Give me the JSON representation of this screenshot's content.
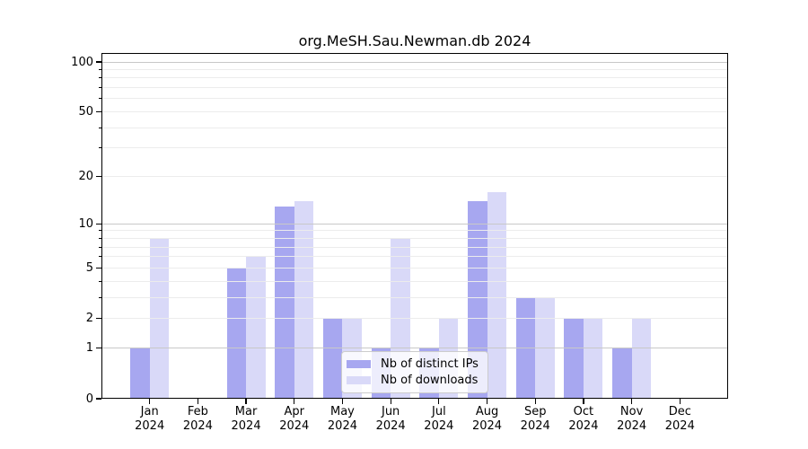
{
  "chart_data": {
    "type": "bar",
    "title": "org.MeSH.Sau.Newman.db 2024",
    "categories": [
      "Jan",
      "Feb",
      "Mar",
      "Apr",
      "May",
      "Jun",
      "Jul",
      "Aug",
      "Sep",
      "Oct",
      "Nov",
      "Dec"
    ],
    "year_label": "2024",
    "series": [
      {
        "name": "Nb of distinct IPs",
        "color": "#a7a7f0",
        "values": [
          1,
          0,
          5,
          13,
          2,
          1,
          1,
          14,
          3,
          2,
          1,
          0
        ]
      },
      {
        "name": "Nb of downloads",
        "color": "#d9d9f8",
        "values": [
          8,
          0,
          6,
          14,
          2,
          8,
          2,
          16,
          3,
          2,
          2,
          0
        ]
      }
    ],
    "yscale": "log1p",
    "ylim": [
      0,
      110
    ],
    "yticks_labeled": [
      0,
      1,
      2,
      5,
      10,
      20,
      50,
      100
    ],
    "grid": "on",
    "grid_major_values": [
      1,
      10,
      100
    ],
    "grid_minor_values": [
      2,
      3,
      4,
      5,
      6,
      7,
      8,
      9,
      20,
      30,
      40,
      50,
      60,
      70,
      80,
      90
    ],
    "legend_position": "lower center"
  },
  "colors": {
    "background": "#ffffff",
    "axis": "#000000",
    "grid_major": "#c8c8c8",
    "grid_minor": "#ececec",
    "legend_border": "#cccccc",
    "legend_background": "rgba(255,255,255,0.8)"
  }
}
